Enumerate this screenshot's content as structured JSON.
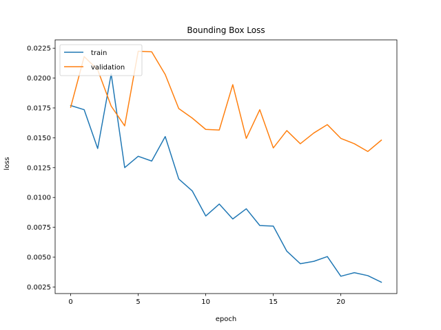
{
  "chart_data": {
    "type": "line",
    "title": "Bounding Box Loss",
    "xlabel": "epoch",
    "ylabel": "loss",
    "xlim": [
      -1.15,
      24.15
    ],
    "ylim": [
      0.00195,
      0.0232
    ],
    "xticks": [
      0,
      5,
      10,
      15,
      20
    ],
    "yticks": [
      0.0025,
      0.005,
      0.0075,
      0.01,
      0.0125,
      0.015,
      0.0175,
      0.02,
      0.0225
    ],
    "ytick_labels": [
      "0.0025",
      "0.0050",
      "0.0075",
      "0.0100",
      "0.0125",
      "0.0150",
      "0.0175",
      "0.0200",
      "0.0225"
    ],
    "grid": false,
    "legend_position": "upper-left",
    "x": [
      0,
      1,
      2,
      3,
      4,
      5,
      6,
      7,
      8,
      9,
      10,
      11,
      12,
      13,
      14,
      15,
      16,
      17,
      18,
      19,
      20,
      21,
      22,
      23
    ],
    "series": [
      {
        "name": "train",
        "color": "#1f77b4",
        "values": [
          0.0177,
          0.01735,
          0.0141,
          0.02035,
          0.0125,
          0.01345,
          0.01305,
          0.0151,
          0.01155,
          0.01055,
          0.00845,
          0.00945,
          0.0082,
          0.00905,
          0.00765,
          0.0076,
          0.0055,
          0.00445,
          0.00465,
          0.00505,
          0.0034,
          0.0037,
          0.00345,
          0.0029
        ]
      },
      {
        "name": "validation",
        "color": "#ff7f0e",
        "values": [
          0.01755,
          0.0218,
          0.0207,
          0.01765,
          0.016,
          0.02225,
          0.0222,
          0.0203,
          0.01745,
          0.01665,
          0.0157,
          0.01565,
          0.01945,
          0.01495,
          0.01735,
          0.01415,
          0.0156,
          0.0145,
          0.0154,
          0.0161,
          0.01495,
          0.0145,
          0.01385,
          0.0148
        ]
      }
    ]
  }
}
